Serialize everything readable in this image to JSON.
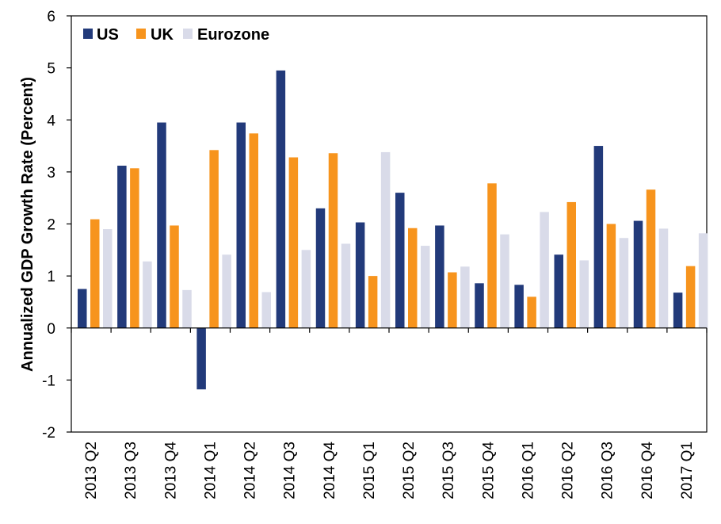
{
  "chart_data": {
    "type": "bar",
    "ylabel": "Annualized GDP Growth Rate (Percent)",
    "xlabel": "",
    "ylim": [
      -2,
      6
    ],
    "yticks": [
      "6",
      "5",
      "4",
      "3",
      "2",
      "1",
      "0",
      "-1",
      "-2"
    ],
    "grid": false,
    "legend_position": "top-left",
    "categories": [
      "2013 Q2",
      "2013 Q3",
      "2013 Q4",
      "2014 Q1",
      "2014 Q2",
      "2014 Q3",
      "2014 Q4",
      "2015 Q1",
      "2015 Q2",
      "2015 Q3",
      "2015 Q4",
      "2016 Q1",
      "2016 Q2",
      "2016 Q3",
      "2016 Q4",
      "2017 Q1"
    ],
    "series": [
      {
        "name": "US",
        "color": "#223a7a",
        "values": [
          0.75,
          3.12,
          3.95,
          -1.18,
          3.95,
          4.95,
          2.3,
          2.03,
          2.6,
          1.97,
          0.86,
          0.83,
          1.41,
          3.5,
          2.06,
          0.68
        ]
      },
      {
        "name": "UK",
        "color": "#f7941d",
        "values": [
          2.09,
          3.07,
          1.97,
          3.42,
          3.74,
          3.28,
          3.36,
          1.0,
          1.92,
          1.07,
          2.78,
          0.6,
          2.42,
          2.0,
          2.66,
          1.19
        ]
      },
      {
        "name": "Eurozone",
        "color": "#d9dbe9",
        "values": [
          1.9,
          1.28,
          0.73,
          1.41,
          0.69,
          1.5,
          1.62,
          3.38,
          1.58,
          1.18,
          1.8,
          2.23,
          1.3,
          1.73,
          1.91,
          1.82
        ]
      }
    ]
  }
}
